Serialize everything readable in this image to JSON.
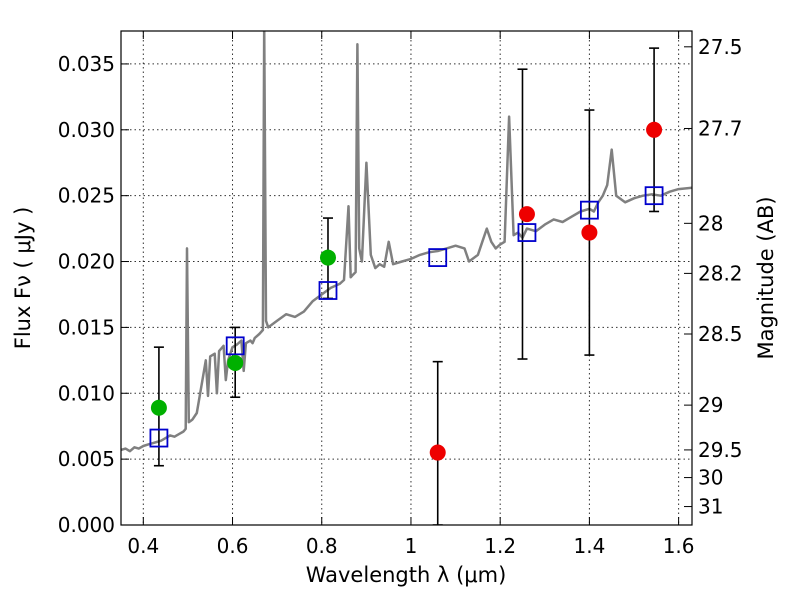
{
  "chart_data": {
    "type": "scatter",
    "title": "",
    "xlabel": "Wavelength  λ (μm)",
    "ylabel": "Flux  Fν  ( μJy )",
    "y2label": "Magnitude (AB)",
    "xlim": [
      0.35,
      1.63
    ],
    "ylim": [
      0.0,
      0.0375
    ],
    "grid": true,
    "legend": "none",
    "x_ticks": [
      0.4,
      0.6,
      0.8,
      1.0,
      1.2,
      1.4,
      1.6
    ],
    "x_tick_labels": [
      "0.4",
      "0.6",
      "0.8",
      "1",
      "1.2",
      "1.4",
      "1.6"
    ],
    "y_ticks": [
      0.0,
      0.005,
      0.01,
      0.015,
      0.02,
      0.025,
      0.03,
      0.035
    ],
    "y_tick_labels": [
      "0.000",
      "0.005",
      "0.010",
      "0.015",
      "0.020",
      "0.025",
      "0.030",
      "0.035"
    ],
    "y2_ticks": [
      {
        "flux": 0.0363,
        "label": "27.5"
      },
      {
        "flux": 0.0301,
        "label": "27.7"
      },
      {
        "flux": 0.0229,
        "label": "28"
      },
      {
        "flux": 0.0191,
        "label": "28.2"
      },
      {
        "flux": 0.0145,
        "label": "28.5"
      },
      {
        "flux": 0.0091,
        "label": "29"
      },
      {
        "flux": 0.0057,
        "label": "29.5"
      },
      {
        "flux": 0.0036,
        "label": "30"
      },
      {
        "flux": 0.0014,
        "label": "31"
      }
    ],
    "colors": {
      "model": "#808080",
      "observed_optical": "#00b000",
      "observed_nir": "#ee0000",
      "model_photometry": "#0000cc",
      "errorbar": "#000000"
    },
    "series": [
      {
        "kind": "errorbar",
        "points": [
          {
            "x": 0.435,
            "ylow": 0.0045,
            "yhigh": 0.0135
          },
          {
            "x": 0.606,
            "ylow": 0.0097,
            "yhigh": 0.015
          },
          {
            "x": 0.814,
            "ylow": 0.0172,
            "yhigh": 0.0233
          },
          {
            "x": 1.06,
            "ylow": 0.0,
            "yhigh": 0.0124
          },
          {
            "x": 1.25,
            "ylow": 0.0126,
            "yhigh": 0.0346
          },
          {
            "x": 1.4,
            "ylow": 0.0129,
            "yhigh": 0.0315
          },
          {
            "x": 1.545,
            "ylow": 0.0238,
            "yhigh": 0.0362
          }
        ]
      },
      {
        "kind": "model-photometry",
        "points": [
          {
            "x": 0.435,
            "y": 0.0066
          },
          {
            "x": 0.606,
            "y": 0.0136
          },
          {
            "x": 0.814,
            "y": 0.0178
          },
          {
            "x": 1.06,
            "y": 0.0203
          },
          {
            "x": 1.26,
            "y": 0.0222
          },
          {
            "x": 1.4,
            "y": 0.0239
          },
          {
            "x": 1.545,
            "y": 0.025
          }
        ]
      },
      {
        "kind": "observed-optical",
        "points": [
          {
            "x": 0.435,
            "y": 0.0089
          },
          {
            "x": 0.606,
            "y": 0.0123
          },
          {
            "x": 0.814,
            "y": 0.0203
          }
        ]
      },
      {
        "kind": "observed-nir",
        "points": [
          {
            "x": 1.06,
            "y": 0.0055
          },
          {
            "x": 1.26,
            "y": 0.0236
          },
          {
            "x": 1.4,
            "y": 0.0222
          },
          {
            "x": 1.545,
            "y": 0.03
          }
        ]
      },
      {
        "kind": "model-spectrum",
        "points": [
          [
            0.35,
            0.0057
          ],
          [
            0.36,
            0.0058
          ],
          [
            0.37,
            0.0056
          ],
          [
            0.38,
            0.0059
          ],
          [
            0.39,
            0.0058
          ],
          [
            0.4,
            0.006
          ],
          [
            0.41,
            0.0061
          ],
          [
            0.42,
            0.0062
          ],
          [
            0.43,
            0.0063
          ],
          [
            0.44,
            0.0064
          ],
          [
            0.45,
            0.0066
          ],
          [
            0.46,
            0.0068
          ],
          [
            0.47,
            0.0067
          ],
          [
            0.48,
            0.0069
          ],
          [
            0.49,
            0.0071
          ],
          [
            0.495,
            0.0073
          ],
          [
            0.498,
            0.021
          ],
          [
            0.502,
            0.0078
          ],
          [
            0.51,
            0.008
          ],
          [
            0.52,
            0.0085
          ],
          [
            0.53,
            0.0105
          ],
          [
            0.54,
            0.0125
          ],
          [
            0.545,
            0.0098
          ],
          [
            0.55,
            0.0128
          ],
          [
            0.56,
            0.013
          ],
          [
            0.565,
            0.01
          ],
          [
            0.57,
            0.0132
          ],
          [
            0.58,
            0.0136
          ],
          [
            0.585,
            0.011
          ],
          [
            0.59,
            0.0125
          ],
          [
            0.6,
            0.0135
          ],
          [
            0.61,
            0.0137
          ],
          [
            0.62,
            0.014
          ],
          [
            0.625,
            0.0117
          ],
          [
            0.63,
            0.0138
          ],
          [
            0.64,
            0.014
          ],
          [
            0.645,
            0.0138
          ],
          [
            0.65,
            0.0142
          ],
          [
            0.66,
            0.0145
          ],
          [
            0.668,
            0.0148
          ],
          [
            0.671,
            0.038
          ],
          [
            0.675,
            0.0155
          ],
          [
            0.68,
            0.015
          ],
          [
            0.7,
            0.0155
          ],
          [
            0.72,
            0.016
          ],
          [
            0.74,
            0.0158
          ],
          [
            0.76,
            0.0162
          ],
          [
            0.78,
            0.017
          ],
          [
            0.8,
            0.0175
          ],
          [
            0.82,
            0.018
          ],
          [
            0.84,
            0.0183
          ],
          [
            0.85,
            0.0186
          ],
          [
            0.86,
            0.0242
          ],
          [
            0.865,
            0.0188
          ],
          [
            0.87,
            0.019
          ],
          [
            0.876,
            0.0192
          ],
          [
            0.88,
            0.0365
          ],
          [
            0.884,
            0.021
          ],
          [
            0.89,
            0.02
          ],
          [
            0.9,
            0.0275
          ],
          [
            0.91,
            0.0205
          ],
          [
            0.92,
            0.0195
          ],
          [
            0.93,
            0.0198
          ],
          [
            0.94,
            0.0196
          ],
          [
            0.95,
            0.0215
          ],
          [
            0.96,
            0.0198
          ],
          [
            0.98,
            0.02
          ],
          [
            1.0,
            0.0202
          ],
          [
            1.02,
            0.0205
          ],
          [
            1.04,
            0.0207
          ],
          [
            1.06,
            0.0208
          ],
          [
            1.08,
            0.021
          ],
          [
            1.1,
            0.0212
          ],
          [
            1.12,
            0.021
          ],
          [
            1.13,
            0.02
          ],
          [
            1.15,
            0.0205
          ],
          [
            1.16,
            0.0215
          ],
          [
            1.17,
            0.0225
          ],
          [
            1.18,
            0.0215
          ],
          [
            1.19,
            0.021
          ],
          [
            1.2,
            0.0213
          ],
          [
            1.21,
            0.0215
          ],
          [
            1.22,
            0.031
          ],
          [
            1.23,
            0.022
          ],
          [
            1.24,
            0.0222
          ],
          [
            1.25,
            0.0218
          ],
          [
            1.26,
            0.0225
          ],
          [
            1.28,
            0.0223
          ],
          [
            1.3,
            0.0228
          ],
          [
            1.32,
            0.0232
          ],
          [
            1.34,
            0.023
          ],
          [
            1.36,
            0.0234
          ],
          [
            1.38,
            0.0238
          ],
          [
            1.4,
            0.024
          ],
          [
            1.41,
            0.0238
          ],
          [
            1.42,
            0.0245
          ],
          [
            1.43,
            0.025
          ],
          [
            1.44,
            0.0258
          ],
          [
            1.45,
            0.0285
          ],
          [
            1.46,
            0.025
          ],
          [
            1.48,
            0.0245
          ],
          [
            1.5,
            0.0248
          ],
          [
            1.52,
            0.025
          ],
          [
            1.54,
            0.0251
          ],
          [
            1.56,
            0.025
          ],
          [
            1.58,
            0.0253
          ],
          [
            1.6,
            0.0255
          ],
          [
            1.63,
            0.0256
          ]
        ]
      }
    ]
  }
}
